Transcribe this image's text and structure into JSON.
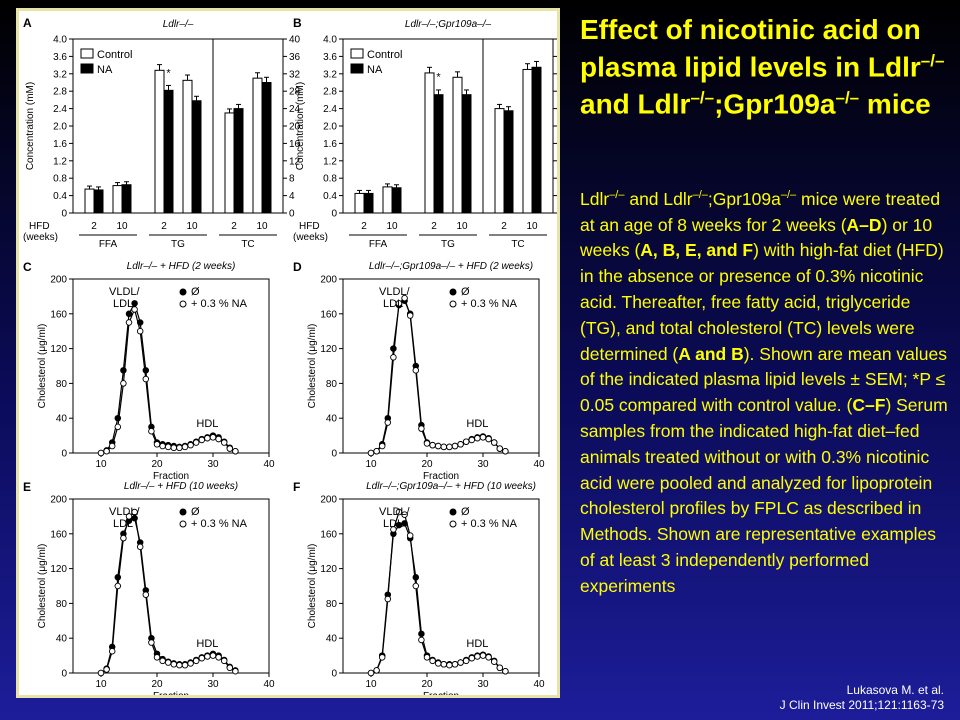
{
  "slide": {
    "title_parts": [
      {
        "t": "Effect of nicotinic acid on plasma lipid levels in Ldlr"
      },
      {
        "t": "–/–",
        "sup": true
      },
      {
        "t": " and Ldlr"
      },
      {
        "t": "–/–",
        "sup": true
      },
      {
        "t": ";Gpr109a"
      },
      {
        "t": "–/–",
        "sup": true
      },
      {
        "t": " mice"
      }
    ],
    "body_parts": [
      {
        "t": "Ldlr"
      },
      {
        "t": "–/–",
        "sup": true
      },
      {
        "t": " and Ldlr"
      },
      {
        "t": "–/–",
        "sup": true
      },
      {
        "t": ";Gpr109a"
      },
      {
        "t": "–/–",
        "sup": true
      },
      {
        "t": " mice were treated at an age of 8 weeks for 2 weeks ("
      },
      {
        "t": "A–D",
        "b": true
      },
      {
        "t": ") or 10 weeks ("
      },
      {
        "t": "A, B, E, and F",
        "b": true
      },
      {
        "t": ") with high-fat diet (HFD) in the absence or presence of 0.3% nicotinic acid. Thereafter, free fatty acid, triglyceride (TG), and total cholesterol (TC) levels were determined ("
      },
      {
        "t": "A and B",
        "b": true
      },
      {
        "t": "). Shown are mean values of the indicated plasma lipid levels ± SEM; *P ≤ 0.05 compared with control value. ("
      },
      {
        "t": "C–F",
        "b": true
      },
      {
        "t": ") Serum samples from the indicated high-fat diet–fed animals treated without or with 0.3% nicotinic acid were pooled and analyzed for lipoprotein cholesterol profiles by FPLC as described in Methods. Shown are representative examples of at least 3 independently performed experiments"
      }
    ],
    "citation_line1": "Lukasova M. et al.",
    "citation_line2": "J Clin Invest 2011;121:1163-73",
    "colors": {
      "background": "#0b0b5a",
      "title": "#ffff00",
      "body": "#ffff00",
      "citation": "#ffffff",
      "figure_border": "#e8e4a8"
    }
  },
  "chart_data": [
    {
      "panel": "A",
      "type": "bar",
      "title": "Ldlr–/–",
      "ylabel": "Concentration (mM)",
      "ylim_left": [
        0,
        4.0
      ],
      "ylim_right": [
        0,
        40
      ],
      "yticks_left": [
        "0",
        "0.4",
        "0.8",
        "1.2",
        "1.6",
        "2.0",
        "2.4",
        "2.8",
        "3.2",
        "3.6",
        "4.0"
      ],
      "yticks_right": [
        "0",
        "4",
        "8",
        "12",
        "16",
        "20",
        "24",
        "28",
        "32",
        "36",
        "40"
      ],
      "x_header": "HFD\n(weeks)",
      "groups": [
        {
          "name": "FFA",
          "axis": "left",
          "categories": [
            "2",
            "10"
          ],
          "control": [
            0.55,
            0.63
          ],
          "na": [
            0.53,
            0.65
          ]
        },
        {
          "name": "TG",
          "axis": "left",
          "categories": [
            "2",
            "10"
          ],
          "control": [
            3.28,
            3.05
          ],
          "na": [
            2.82,
            2.58
          ]
        },
        {
          "name": "TC",
          "axis": "right",
          "categories": [
            "2",
            "10"
          ],
          "control": [
            23,
            31
          ],
          "na": [
            24,
            30
          ]
        }
      ],
      "legend": [
        "Control",
        "NA"
      ],
      "significance": [
        {
          "group": "TG",
          "category": "2",
          "mark": "*"
        }
      ],
      "error_bars": true
    },
    {
      "panel": "B",
      "type": "bar",
      "title": "Ldlr–/–;Gpr109a–/–",
      "ylabel": "Concentration (mM)",
      "ylim_left": [
        0,
        4.0
      ],
      "ylim_right": [
        0,
        40
      ],
      "yticks_left": [
        "0",
        "0.4",
        "0.8",
        "1.2",
        "1.6",
        "2.0",
        "2.4",
        "2.8",
        "3.2",
        "3.6",
        "4.0"
      ],
      "yticks_right": [
        "0",
        "4",
        "8",
        "12",
        "16",
        "20",
        "24",
        "28",
        "32",
        "36",
        "40"
      ],
      "x_header": "HFD\n(weeks)",
      "groups": [
        {
          "name": "FFA",
          "axis": "left",
          "categories": [
            "2",
            "10"
          ],
          "control": [
            0.45,
            0.6
          ],
          "na": [
            0.45,
            0.58
          ]
        },
        {
          "name": "TG",
          "axis": "left",
          "categories": [
            "2",
            "10"
          ],
          "control": [
            3.22,
            3.12
          ],
          "na": [
            2.72,
            2.72
          ]
        },
        {
          "name": "TC",
          "axis": "right",
          "categories": [
            "2",
            "10"
          ],
          "control": [
            24,
            33
          ],
          "na": [
            23.5,
            33.5
          ]
        }
      ],
      "legend": [
        "Control",
        "NA"
      ],
      "significance": [
        {
          "group": "TG",
          "category": "2",
          "mark": "*"
        }
      ],
      "error_bars": true
    },
    {
      "panel": "C",
      "type": "line",
      "title": "Ldlr–/– + HFD (2 weeks)",
      "xlabel": "Fraction",
      "ylabel": "Cholesterol (μg/ml)",
      "xlim": [
        5,
        40
      ],
      "ylim": [
        0,
        200
      ],
      "xticks": [
        "10",
        "20",
        "30",
        "40"
      ],
      "yticks": [
        "0",
        "40",
        "80",
        "120",
        "160",
        "200"
      ],
      "annotations": [
        "VLDL/\nLDL",
        "HDL"
      ],
      "legend": [
        "Ø",
        "+ 0.3 % NA"
      ],
      "x": [
        10,
        11,
        12,
        13,
        14,
        15,
        16,
        17,
        18,
        19,
        20,
        21,
        22,
        23,
        24,
        25,
        26,
        27,
        28,
        29,
        30,
        31,
        32,
        33,
        34
      ],
      "series": [
        {
          "name": "Ø",
          "marker": "filled",
          "values": [
            0,
            3,
            12,
            40,
            95,
            160,
            172,
            150,
            95,
            30,
            12,
            10,
            9,
            8,
            7,
            8,
            10,
            13,
            16,
            18,
            20,
            18,
            13,
            6,
            2
          ]
        },
        {
          "name": "+ 0.3 % NA",
          "marker": "open",
          "values": [
            0,
            2,
            8,
            30,
            80,
            150,
            165,
            140,
            85,
            25,
            10,
            8,
            7,
            6,
            6,
            7,
            9,
            12,
            15,
            17,
            18,
            16,
            12,
            5,
            2
          ]
        }
      ]
    },
    {
      "panel": "D",
      "type": "line",
      "title": "Ldlr–/–;Gpr109a–/– + HFD (2 weeks)",
      "xlabel": "Fraction",
      "ylabel": "Cholesterol (μg/ml)",
      "xlim": [
        5,
        40
      ],
      "ylim": [
        0,
        200
      ],
      "xticks": [
        "10",
        "20",
        "30",
        "40"
      ],
      "yticks": [
        "0",
        "40",
        "80",
        "120",
        "160",
        "200"
      ],
      "annotations": [
        "VLDL/\nLDL",
        "HDL"
      ],
      "legend": [
        "Ø",
        "+ 0.3 % NA"
      ],
      "x": [
        10,
        11,
        12,
        13,
        14,
        15,
        16,
        17,
        18,
        19,
        20,
        21,
        22,
        23,
        24,
        25,
        26,
        27,
        28,
        29,
        30,
        31,
        32,
        33,
        34
      ],
      "series": [
        {
          "name": "Ø",
          "marker": "filled",
          "values": [
            0,
            2,
            10,
            40,
            120,
            170,
            175,
            160,
            100,
            32,
            12,
            9,
            8,
            7,
            7,
            8,
            10,
            13,
            16,
            18,
            19,
            17,
            12,
            5,
            2
          ]
        },
        {
          "name": "+ 0.3 % NA",
          "marker": "open",
          "values": [
            0,
            2,
            8,
            35,
            110,
            172,
            178,
            158,
            95,
            28,
            11,
            9,
            8,
            7,
            7,
            8,
            10,
            13,
            15,
            17,
            18,
            16,
            12,
            5,
            2
          ]
        }
      ]
    },
    {
      "panel": "E",
      "type": "line",
      "title": "Ldlr–/– + HFD (10 weeks)",
      "xlabel": "Fraction",
      "ylabel": "Cholesterol (μg/ml)",
      "xlim": [
        5,
        40
      ],
      "ylim": [
        0,
        200
      ],
      "xticks": [
        "10",
        "20",
        "30",
        "40"
      ],
      "yticks": [
        "0",
        "40",
        "80",
        "120",
        "160",
        "200"
      ],
      "annotations": [
        "VLDL/\nLDL",
        "HDL"
      ],
      "legend": [
        "Ø",
        "+ 0.3 % NA"
      ],
      "x": [
        10,
        11,
        12,
        13,
        14,
        15,
        16,
        17,
        18,
        19,
        20,
        21,
        22,
        23,
        24,
        25,
        26,
        27,
        28,
        29,
        30,
        31,
        32,
        33,
        34
      ],
      "series": [
        {
          "name": "Ø",
          "marker": "filled",
          "values": [
            0,
            5,
            30,
            110,
            160,
            175,
            178,
            150,
            95,
            40,
            22,
            16,
            13,
            11,
            10,
            10,
            12,
            15,
            18,
            20,
            22,
            20,
            15,
            7,
            3
          ]
        },
        {
          "name": "+ 0.3 % NA",
          "marker": "open",
          "values": [
            0,
            4,
            25,
            100,
            155,
            180,
            185,
            145,
            90,
            35,
            18,
            14,
            12,
            10,
            9,
            9,
            11,
            14,
            17,
            19,
            20,
            18,
            14,
            6,
            2
          ]
        }
      ]
    },
    {
      "panel": "F",
      "type": "line",
      "title": "Ldlr–/–;Gpr109a–/– + HFD (10 weeks)",
      "xlabel": "Fraction",
      "ylabel": "Cholesterol (μg/ml)",
      "xlim": [
        5,
        40
      ],
      "ylim": [
        0,
        200
      ],
      "xticks": [
        "10",
        "20",
        "30",
        "40"
      ],
      "yticks": [
        "0",
        "40",
        "80",
        "120",
        "160",
        "200"
      ],
      "annotations": [
        "VLDL/\nLDL",
        "HDL"
      ],
      "legend": [
        "Ø",
        "+ 0.3 % NA"
      ],
      "x": [
        10,
        11,
        12,
        13,
        14,
        15,
        16,
        17,
        18,
        19,
        20,
        21,
        22,
        23,
        24,
        25,
        26,
        27,
        28,
        29,
        30,
        31,
        32,
        33,
        34
      ],
      "series": [
        {
          "name": "Ø",
          "marker": "filled",
          "values": [
            0,
            3,
            20,
            90,
            160,
            170,
            172,
            155,
            110,
            45,
            20,
            15,
            12,
            10,
            10,
            10,
            12,
            15,
            18,
            20,
            21,
            19,
            14,
            6,
            2
          ]
        },
        {
          "name": "+ 0.3 % NA",
          "marker": "open",
          "values": [
            0,
            3,
            18,
            85,
            165,
            185,
            182,
            158,
            100,
            38,
            18,
            14,
            11,
            10,
            9,
            10,
            12,
            14,
            17,
            19,
            20,
            18,
            13,
            6,
            2
          ]
        }
      ]
    }
  ]
}
